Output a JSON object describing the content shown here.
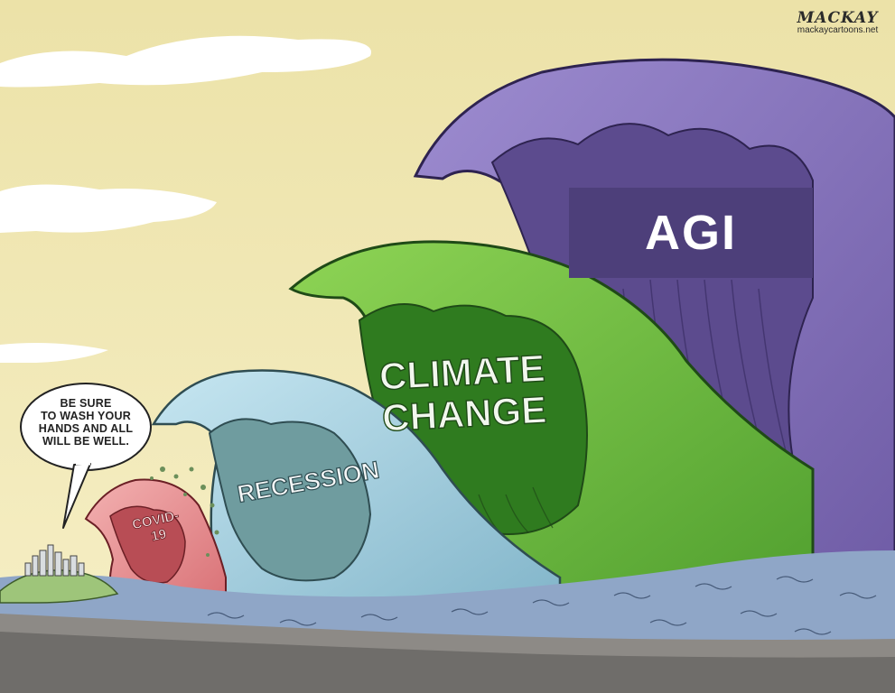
{
  "speech_bubble": {
    "lines": [
      "BE SURE",
      "TO WASH YOUR",
      "HANDS AND ALL",
      "WILL BE WELL."
    ]
  },
  "signature": {
    "name": "MACKAY",
    "site": "mackaycartoons.net"
  },
  "waves": {
    "agi": "AGI",
    "climate_line1": "CLIMATE",
    "climate_line2": "CHANGE",
    "recession": "RECESSION",
    "covid_line1": "COVID-",
    "covid_line2": "19"
  },
  "colors": {
    "sky": "#f3e9b6",
    "agi_wave": "#8a78bd",
    "agi_box": "#4d3f7a",
    "climate_wave": "#7ac443",
    "recession_wave": "#a9d4e6",
    "covid_wave": "#e69395",
    "sea": "#8fa6c7",
    "land": "#8d8a86"
  }
}
